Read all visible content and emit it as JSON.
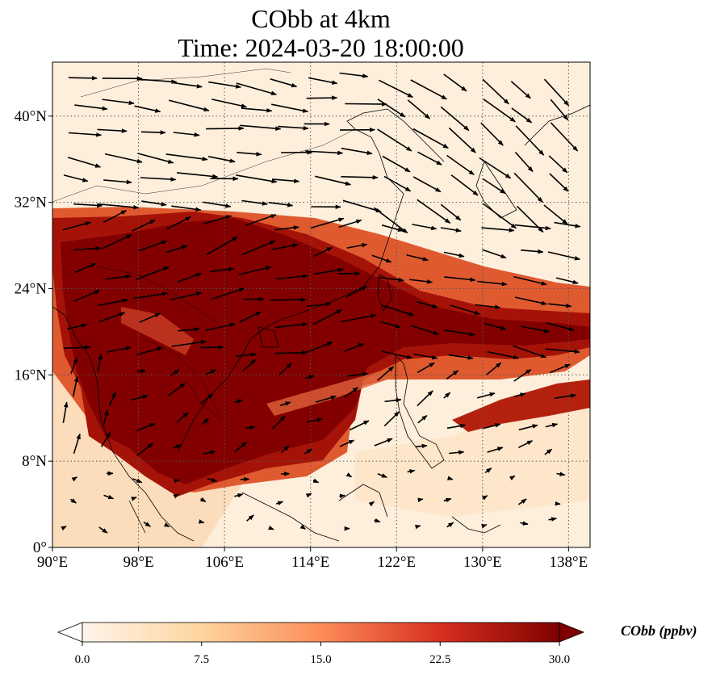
{
  "title": {
    "line1": "CObb at 4km",
    "line2": "Time: 2024-03-20 18:00:00"
  },
  "map": {
    "projection": "PlateCarree",
    "extent": {
      "lon_min": 90,
      "lon_max": 140,
      "lat_min": 0,
      "lat_max": 45
    },
    "gridlines": "dotted",
    "lon_ticks": [
      {
        "value": 90,
        "label": "90°E"
      },
      {
        "value": 98,
        "label": "98°E"
      },
      {
        "value": 106,
        "label": "106°E"
      },
      {
        "value": 114,
        "label": "114°E"
      },
      {
        "value": 122,
        "label": "122°E"
      },
      {
        "value": 130,
        "label": "130°E"
      },
      {
        "value": 138,
        "label": "138°E"
      }
    ],
    "lat_ticks": [
      {
        "value": 0,
        "label": "0°"
      },
      {
        "value": 8,
        "label": "8°N"
      },
      {
        "value": 16,
        "label": "16°N"
      },
      {
        "value": 24,
        "label": "24°N"
      },
      {
        "value": 32,
        "label": "32°N"
      },
      {
        "value": 40,
        "label": "40°N"
      }
    ],
    "field": "CO from biomass burning, filled contours",
    "vectors": "wind arrows",
    "colormap": [
      "#fff5eb",
      "#fdd49e",
      "#fc8d59",
      "#d7301f",
      "#7f0000"
    ]
  },
  "colorbar": {
    "title": "CObb (ppbv)",
    "ticks": [
      "0.0",
      "7.5",
      "15.0",
      "22.5",
      "30.0"
    ],
    "min": 0,
    "max": 30,
    "extend": "both"
  }
}
